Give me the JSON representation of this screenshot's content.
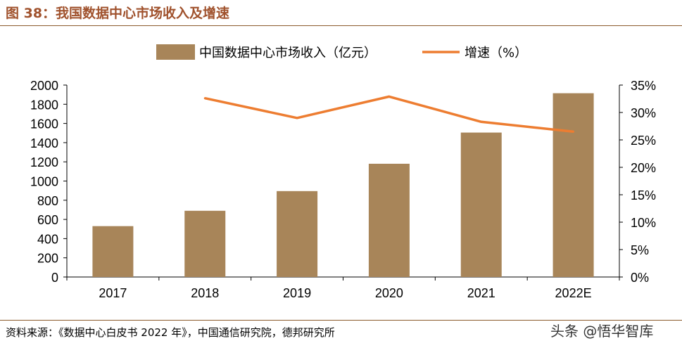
{
  "header": {
    "title": "图 38：我国数据中心市场收入及增速"
  },
  "footer": {
    "source": "资料来源：《数据中心白皮书 2022 年》，中国通信研究院，德邦研究所"
  },
  "watermark": {
    "text": "头条 @悟华智库"
  },
  "chart_data": {
    "type": "bar",
    "title": "",
    "categories": [
      "2017",
      "2018",
      "2019",
      "2020",
      "2021",
      "2022E"
    ],
    "series": [
      {
        "name": "中国数据中心市场收入（亿元）",
        "type": "bar",
        "axis": "left",
        "color": "#a88559",
        "values": [
          530,
          690,
          895,
          1180,
          1505,
          1915
        ]
      },
      {
        "name": "增速（%）",
        "type": "line",
        "axis": "right",
        "color": "#ed7d31",
        "values": [
          null,
          32.6,
          29.0,
          32.9,
          28.3,
          26.5
        ]
      }
    ],
    "y_left": {
      "ylim": [
        0,
        2000
      ],
      "ticks": [
        0,
        200,
        400,
        600,
        800,
        1000,
        1200,
        1400,
        1600,
        1800,
        2000
      ]
    },
    "y_right": {
      "ylim": [
        0,
        35
      ],
      "ticks": [
        "0%",
        "5%",
        "10%",
        "15%",
        "20%",
        "25%",
        "30%",
        "35%"
      ]
    },
    "legend_placement": "top-center",
    "grid": false
  }
}
